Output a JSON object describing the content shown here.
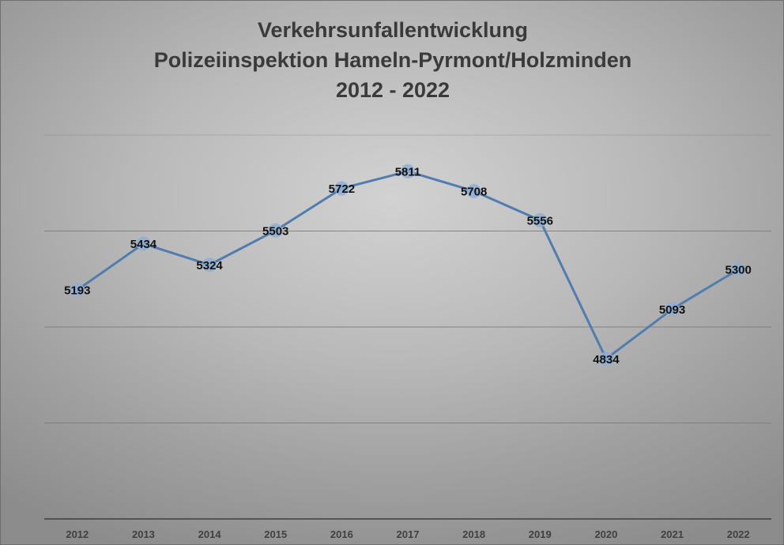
{
  "chart_data": {
    "type": "line",
    "title": "Verkehrsunfallentwicklung\nPolizeiinspektion Hameln-Pyrmont/Holzminden\n2012 - 2022",
    "title_lines": [
      "Verkehrsunfallentwicklung",
      "Polizeiinspektion Hameln-Pyrmont/Holzminden",
      "2012 - 2022"
    ],
    "xlabel": "",
    "ylabel": "",
    "categories": [
      "2012",
      "2013",
      "2014",
      "2015",
      "2016",
      "2017",
      "2018",
      "2019",
      "2020",
      "2021",
      "2022"
    ],
    "series": [
      {
        "values": [
          5193,
          5434,
          5324,
          5503,
          5722,
          5811,
          5708,
          5556,
          4834,
          5093,
          5300
        ],
        "color": "#4f7db0"
      }
    ],
    "ylim": [
      4000,
      6000
    ],
    "grid": true,
    "legend": "none",
    "data_labels": true
  },
  "colors": {
    "line": "#4f7db0",
    "marker": "#8eaed3",
    "gridline": "#7c7c7c",
    "axis": "#3f3f3f",
    "title": "#3a3a3a"
  }
}
